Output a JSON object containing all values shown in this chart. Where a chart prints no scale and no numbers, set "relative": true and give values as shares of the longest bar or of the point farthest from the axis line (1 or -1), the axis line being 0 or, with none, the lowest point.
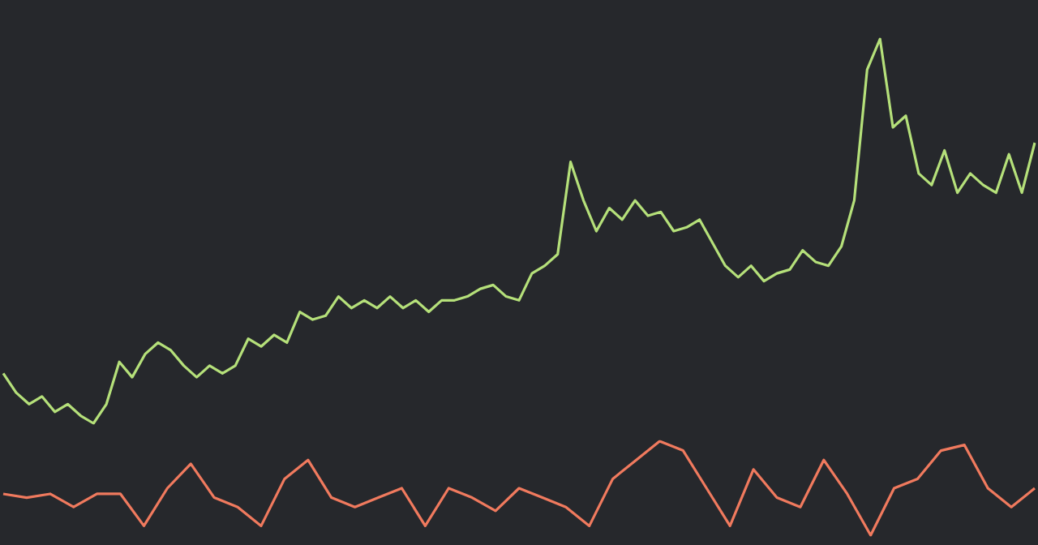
{
  "chart_data": [
    {
      "type": "line",
      "relative": true,
      "marker": "none",
      "legend": false,
      "categories": [
        null,
        null,
        null,
        null,
        null,
        null,
        null,
        null,
        null,
        null,
        null,
        null,
        null,
        null,
        null,
        null,
        null,
        null,
        null,
        null,
        null,
        null,
        null,
        null,
        null,
        null,
        null,
        null,
        null,
        null,
        null,
        null,
        null,
        null,
        null,
        null,
        null,
        null,
        null,
        null,
        null,
        null,
        null,
        null,
        null,
        null,
        null,
        null,
        null,
        null,
        null,
        null,
        null,
        null,
        null,
        null,
        null,
        null,
        null,
        null,
        null,
        null,
        null,
        null,
        null,
        null,
        null,
        null,
        null,
        null,
        null,
        null,
        null,
        null,
        null,
        null,
        null,
        null,
        null,
        null,
        null
      ],
      "series": [
        {
          "color": "#b5e07a",
          "values": [
            0.13,
            0.08,
            0.05,
            0.07,
            0.03,
            0.05,
            0.02,
            0,
            0.05,
            0.16,
            0.12,
            0.18,
            0.21,
            0.19,
            0.15,
            0.12,
            0.15,
            0.13,
            0.15,
            0.22,
            0.2,
            0.23,
            0.21,
            0.29,
            0.27,
            0.28,
            0.33,
            0.3,
            0.32,
            0.3,
            0.33,
            0.3,
            0.32,
            0.29,
            0.32,
            0.32,
            0.33,
            0.35,
            0.36,
            0.33,
            0.32,
            0.39,
            0.41,
            0.44,
            0.68,
            0.58,
            0.5,
            0.56,
            0.53,
            0.58,
            0.54,
            0.55,
            0.5,
            0.51,
            0.53,
            0.47,
            0.41,
            0.38,
            0.41,
            0.37,
            0.39,
            0.4,
            0.45,
            0.42,
            0.41,
            0.46,
            0.58,
            0.92,
            1,
            0.77,
            0.8,
            0.65,
            0.62,
            0.71,
            0.6,
            0.65,
            0.62,
            0.6,
            0.7,
            0.6,
            0.73
          ]
        }
      ]
    },
    {
      "type": "line",
      "relative": true,
      "marker": "none",
      "legend": false,
      "categories": [
        null,
        null,
        null,
        null,
        null,
        null,
        null,
        null,
        null,
        null,
        null,
        null,
        null,
        null,
        null,
        null,
        null,
        null,
        null,
        null,
        null,
        null,
        null,
        null,
        null,
        null,
        null,
        null,
        null,
        null,
        null,
        null,
        null,
        null,
        null,
        null,
        null,
        null,
        null,
        null,
        null,
        null,
        null,
        null,
        null
      ],
      "series": [
        {
          "color": "#f07a5e",
          "values": [
            0.44,
            0.4,
            0.44,
            0.3,
            0.44,
            0.44,
            0.1,
            0.5,
            0.76,
            0.4,
            0.3,
            0.1,
            0.6,
            0.8,
            0.4,
            0.3,
            0.4,
            0.5,
            0.1,
            0.5,
            0.4,
            0.26,
            0.5,
            0.4,
            0.3,
            0.1,
            0.6,
            0.8,
            1,
            0.9,
            0.5,
            0.1,
            0.7,
            0.4,
            0.3,
            0.8,
            0.44,
            0,
            0.5,
            0.6,
            0.9,
            0.96,
            0.5,
            0.3,
            0.5
          ]
        }
      ]
    }
  ]
}
